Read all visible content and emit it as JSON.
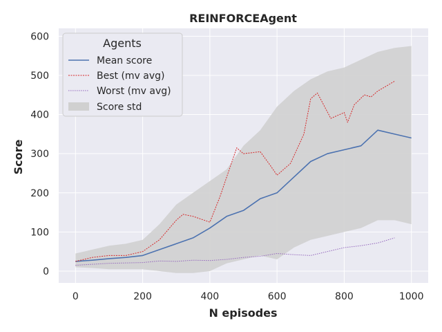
{
  "chart_data": {
    "type": "line",
    "title": "REINFORCEAgent",
    "xlabel": "N episodes",
    "ylabel": "Score",
    "xlim": [
      -50,
      1050
    ],
    "ylim": [
      -30,
      620
    ],
    "xticks": [
      0,
      200,
      400,
      600,
      800,
      1000
    ],
    "yticks": [
      0,
      100,
      200,
      300,
      400,
      500,
      600
    ],
    "grid": true,
    "legend": {
      "title": "Agents",
      "placement": "top-left",
      "entries": [
        "Mean score",
        "Best (mv avg)",
        "Worst (mv avg)",
        "Score std"
      ]
    },
    "colors": {
      "background": "#eaeaf2",
      "grid": "#ffffff",
      "mean": "#4c72b0",
      "best": "#d62728",
      "worst": "#9467bd",
      "std": "#d0d0d0"
    },
    "series": [
      {
        "name": "Mean score",
        "style": "solid",
        "x": [
          0,
          50,
          100,
          150,
          200,
          250,
          300,
          350,
          400,
          450,
          500,
          550,
          600,
          650,
          700,
          750,
          800,
          850,
          900,
          950,
          1000
        ],
        "y": [
          25,
          28,
          32,
          35,
          40,
          55,
          70,
          85,
          110,
          140,
          155,
          185,
          200,
          240,
          280,
          300,
          310,
          320,
          360,
          350,
          340
        ]
      },
      {
        "name": "Best (mv avg)",
        "style": "dashed",
        "x": [
          0,
          50,
          100,
          150,
          200,
          250,
          300,
          320,
          350,
          400,
          430,
          470,
          480,
          500,
          550,
          580,
          600,
          640,
          680,
          700,
          720,
          760,
          800,
          810,
          830,
          860,
          880,
          900,
          950
        ],
        "y": [
          25,
          35,
          40,
          40,
          50,
          80,
          130,
          145,
          140,
          125,
          190,
          290,
          315,
          300,
          305,
          270,
          245,
          275,
          350,
          440,
          455,
          390,
          405,
          380,
          425,
          450,
          445,
          460,
          485
        ]
      },
      {
        "name": "Worst (mv avg)",
        "style": "dotted",
        "x": [
          0,
          100,
          200,
          250,
          300,
          350,
          400,
          450,
          500,
          550,
          600,
          650,
          700,
          750,
          800,
          850,
          900,
          950
        ],
        "y": [
          15,
          20,
          22,
          26,
          25,
          28,
          27,
          30,
          35,
          38,
          45,
          42,
          40,
          50,
          60,
          65,
          72,
          85
        ]
      },
      {
        "name": "Score std",
        "style": "band",
        "x": [
          0,
          50,
          100,
          150,
          200,
          250,
          300,
          350,
          400,
          450,
          500,
          550,
          600,
          650,
          700,
          750,
          800,
          850,
          900,
          950,
          1000
        ],
        "upper": [
          45,
          55,
          65,
          70,
          80,
          120,
          170,
          200,
          230,
          260,
          320,
          360,
          420,
          460,
          490,
          510,
          520,
          540,
          560,
          570,
          575
        ],
        "lower": [
          10,
          8,
          5,
          5,
          5,
          0,
          -5,
          -5,
          0,
          20,
          30,
          40,
          30,
          60,
          80,
          90,
          100,
          110,
          130,
          130,
          120
        ]
      }
    ]
  }
}
